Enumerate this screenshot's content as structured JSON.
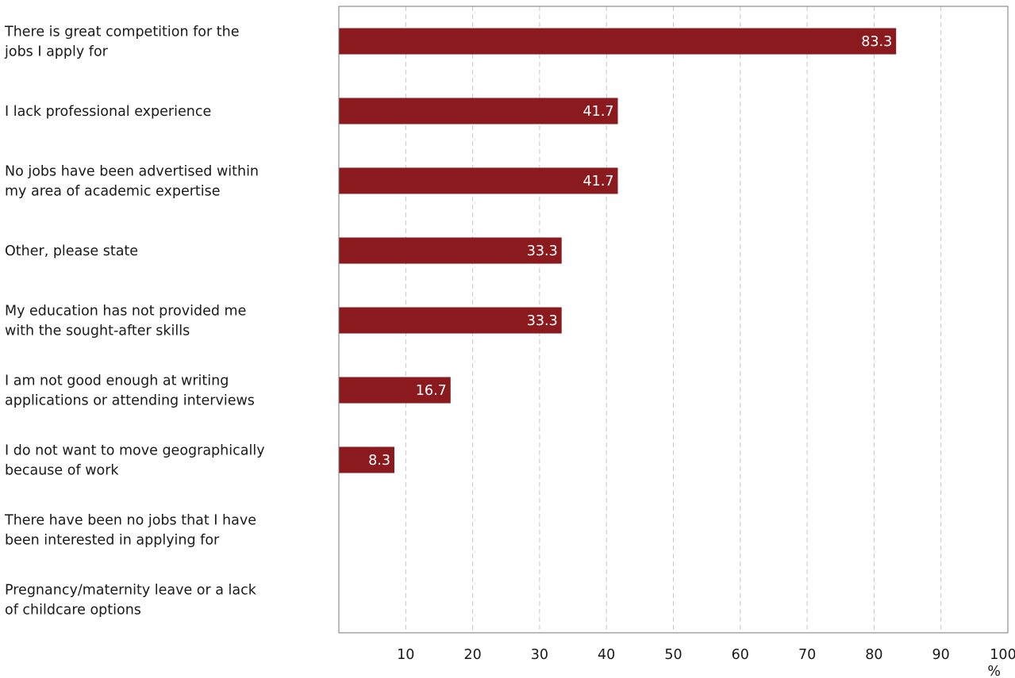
{
  "chart_data": {
    "type": "bar",
    "orientation": "horizontal",
    "categories": [
      [
        "There is great competition for the",
        "jobs I apply for"
      ],
      [
        "I lack professional experience"
      ],
      [
        "No jobs have been advertised within",
        "my area of academic expertise"
      ],
      [
        "Other, please state"
      ],
      [
        "My education has not provided me",
        "with the sought-after skills"
      ],
      [
        "I am not good enough at writing",
        "applications or attending interviews"
      ],
      [
        "I do not want to move geographically",
        "because of work"
      ],
      [
        "There have been no jobs that I have",
        "been interested in applying for"
      ],
      [
        "Pregnancy/maternity leave or a lack",
        "of childcare options"
      ]
    ],
    "values": [
      83.3,
      41.7,
      41.7,
      33.3,
      33.3,
      16.7,
      8.3,
      null,
      null
    ],
    "data_labels": [
      "83.3",
      "41.7",
      "41.7",
      "33.3",
      "33.3",
      "16.7",
      "8.3",
      "",
      ""
    ],
    "xlim": [
      0,
      100
    ],
    "xticks": [
      10,
      20,
      30,
      40,
      50,
      60,
      70,
      80,
      90,
      100
    ],
    "xlabel": "%",
    "grid": "vertical dashed",
    "legend": "none",
    "bar_color": "#8b1a1f"
  }
}
